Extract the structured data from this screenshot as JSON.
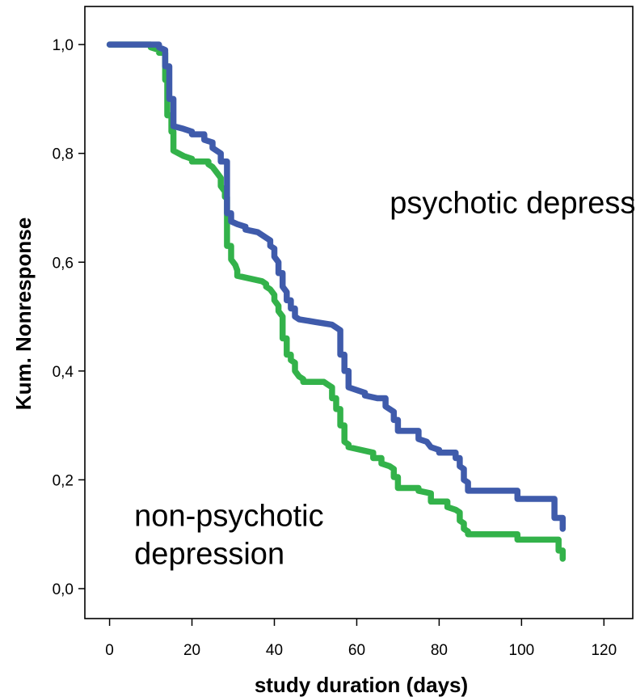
{
  "chart_data": {
    "type": "line",
    "title": "",
    "xlabel": "study duration (days)",
    "ylabel": "Kum. Nonresponse",
    "xlim": [
      -6,
      127
    ],
    "ylim": [
      -0.055,
      1.07
    ],
    "xticks": [
      0,
      20,
      40,
      60,
      80,
      100,
      120
    ],
    "xtick_labels": [
      "0",
      "20",
      "40",
      "60",
      "80",
      "100",
      "120"
    ],
    "yticks": [
      0.0,
      0.2,
      0.4,
      0.6,
      0.8,
      1.0
    ],
    "ytick_labels": [
      "0,0",
      "0,2",
      "0,4",
      "0,6",
      "0,8",
      "1,0"
    ],
    "grid": false,
    "annotations": [
      {
        "text": "psychotic depression",
        "x": 68,
        "y": 0.69
      },
      {
        "text": "non-psychotic",
        "x": 6,
        "y": 0.115
      },
      {
        "text": "depression",
        "x": 6,
        "y": 0.045
      }
    ],
    "series": [
      {
        "name": "psychotic depression",
        "color": "#3f5bab",
        "points": [
          [
            0,
            1.0
          ],
          [
            12,
            1.0
          ],
          [
            12,
            0.995
          ],
          [
            13.5,
            0.99
          ],
          [
            13.5,
            0.96
          ],
          [
            14.5,
            0.96
          ],
          [
            14.5,
            0.9
          ],
          [
            15.5,
            0.9
          ],
          [
            15.5,
            0.85
          ],
          [
            18,
            0.845
          ],
          [
            20,
            0.84
          ],
          [
            20,
            0.835
          ],
          [
            23,
            0.835
          ],
          [
            23,
            0.825
          ],
          [
            25,
            0.82
          ],
          [
            25,
            0.81
          ],
          [
            27,
            0.8
          ],
          [
            27,
            0.785
          ],
          [
            28.5,
            0.785
          ],
          [
            28.5,
            0.69
          ],
          [
            29.5,
            0.69
          ],
          [
            29.5,
            0.675
          ],
          [
            31,
            0.67
          ],
          [
            33,
            0.665
          ],
          [
            33,
            0.66
          ],
          [
            36,
            0.655
          ],
          [
            37,
            0.65
          ],
          [
            38,
            0.645
          ],
          [
            39,
            0.64
          ],
          [
            39,
            0.63
          ],
          [
            40,
            0.625
          ],
          [
            40,
            0.61
          ],
          [
            41,
            0.6
          ],
          [
            41,
            0.58
          ],
          [
            42,
            0.58
          ],
          [
            42,
            0.555
          ],
          [
            43,
            0.545
          ],
          [
            43,
            0.53
          ],
          [
            44,
            0.53
          ],
          [
            44,
            0.515
          ],
          [
            45,
            0.515
          ],
          [
            45,
            0.5
          ],
          [
            46,
            0.495
          ],
          [
            50,
            0.49
          ],
          [
            54,
            0.485
          ],
          [
            55,
            0.48
          ],
          [
            56,
            0.475
          ],
          [
            56,
            0.43
          ],
          [
            57,
            0.43
          ],
          [
            57,
            0.4
          ],
          [
            58,
            0.4
          ],
          [
            58,
            0.37
          ],
          [
            60,
            0.365
          ],
          [
            62,
            0.36
          ],
          [
            62,
            0.355
          ],
          [
            65,
            0.35
          ],
          [
            67,
            0.35
          ],
          [
            67,
            0.335
          ],
          [
            69,
            0.325
          ],
          [
            69,
            0.31
          ],
          [
            70,
            0.31
          ],
          [
            70,
            0.29
          ],
          [
            75,
            0.29
          ],
          [
            75,
            0.275
          ],
          [
            77,
            0.27
          ],
          [
            78,
            0.26
          ],
          [
            80,
            0.255
          ],
          [
            80,
            0.25
          ],
          [
            84,
            0.25
          ],
          [
            84,
            0.24
          ],
          [
            85,
            0.24
          ],
          [
            85,
            0.225
          ],
          [
            86,
            0.22
          ],
          [
            86,
            0.2
          ],
          [
            87,
            0.195
          ],
          [
            87,
            0.18
          ],
          [
            99,
            0.18
          ],
          [
            99,
            0.165
          ],
          [
            108,
            0.165
          ],
          [
            108,
            0.13
          ],
          [
            110,
            0.13
          ],
          [
            110,
            0.11
          ]
        ]
      },
      {
        "name": "non-psychotic depression",
        "color": "#33b24a",
        "points": [
          [
            0,
            1.0
          ],
          [
            10,
            1.0
          ],
          [
            10,
            0.995
          ],
          [
            12,
            0.99
          ],
          [
            12,
            0.985
          ],
          [
            13.5,
            0.985
          ],
          [
            13.5,
            0.935
          ],
          [
            14,
            0.935
          ],
          [
            14,
            0.87
          ],
          [
            15,
            0.87
          ],
          [
            15,
            0.84
          ],
          [
            15.5,
            0.84
          ],
          [
            15.5,
            0.805
          ],
          [
            18,
            0.795
          ],
          [
            20,
            0.79
          ],
          [
            20,
            0.785
          ],
          [
            24,
            0.785
          ],
          [
            24,
            0.78
          ],
          [
            25,
            0.775
          ],
          [
            26,
            0.765
          ],
          [
            27,
            0.755
          ],
          [
            27,
            0.74
          ],
          [
            28,
            0.73
          ],
          [
            28,
            0.72
          ],
          [
            28.5,
            0.72
          ],
          [
            28.5,
            0.63
          ],
          [
            29.5,
            0.63
          ],
          [
            29.5,
            0.605
          ],
          [
            30.5,
            0.595
          ],
          [
            31,
            0.585
          ],
          [
            31,
            0.575
          ],
          [
            34,
            0.57
          ],
          [
            37,
            0.565
          ],
          [
            38,
            0.56
          ],
          [
            38,
            0.555
          ],
          [
            39,
            0.55
          ],
          [
            40,
            0.54
          ],
          [
            40,
            0.53
          ],
          [
            41,
            0.52
          ],
          [
            41,
            0.51
          ],
          [
            42,
            0.5
          ],
          [
            42,
            0.46
          ],
          [
            43,
            0.46
          ],
          [
            43,
            0.43
          ],
          [
            44,
            0.43
          ],
          [
            44,
            0.42
          ],
          [
            45,
            0.415
          ],
          [
            45,
            0.4
          ],
          [
            46,
            0.39
          ],
          [
            47,
            0.385
          ],
          [
            47,
            0.38
          ],
          [
            52,
            0.38
          ],
          [
            53,
            0.375
          ],
          [
            54,
            0.37
          ],
          [
            54,
            0.35
          ],
          [
            55,
            0.35
          ],
          [
            55,
            0.33
          ],
          [
            56,
            0.33
          ],
          [
            56,
            0.3
          ],
          [
            57,
            0.3
          ],
          [
            57,
            0.27
          ],
          [
            58,
            0.265
          ],
          [
            58,
            0.26
          ],
          [
            61,
            0.255
          ],
          [
            64,
            0.25
          ],
          [
            64,
            0.24
          ],
          [
            66,
            0.24
          ],
          [
            66,
            0.23
          ],
          [
            68,
            0.225
          ],
          [
            69,
            0.22
          ],
          [
            69,
            0.205
          ],
          [
            70,
            0.205
          ],
          [
            70,
            0.185
          ],
          [
            75,
            0.185
          ],
          [
            75,
            0.18
          ],
          [
            78,
            0.175
          ],
          [
            78,
            0.16
          ],
          [
            82,
            0.16
          ],
          [
            82,
            0.15
          ],
          [
            84,
            0.145
          ],
          [
            85,
            0.14
          ],
          [
            85,
            0.125
          ],
          [
            86,
            0.12
          ],
          [
            86,
            0.11
          ],
          [
            87,
            0.105
          ],
          [
            87,
            0.1
          ],
          [
            99,
            0.1
          ],
          [
            99,
            0.09
          ],
          [
            109,
            0.09
          ],
          [
            109,
            0.07
          ],
          [
            110,
            0.07
          ],
          [
            110,
            0.055
          ]
        ]
      }
    ]
  }
}
